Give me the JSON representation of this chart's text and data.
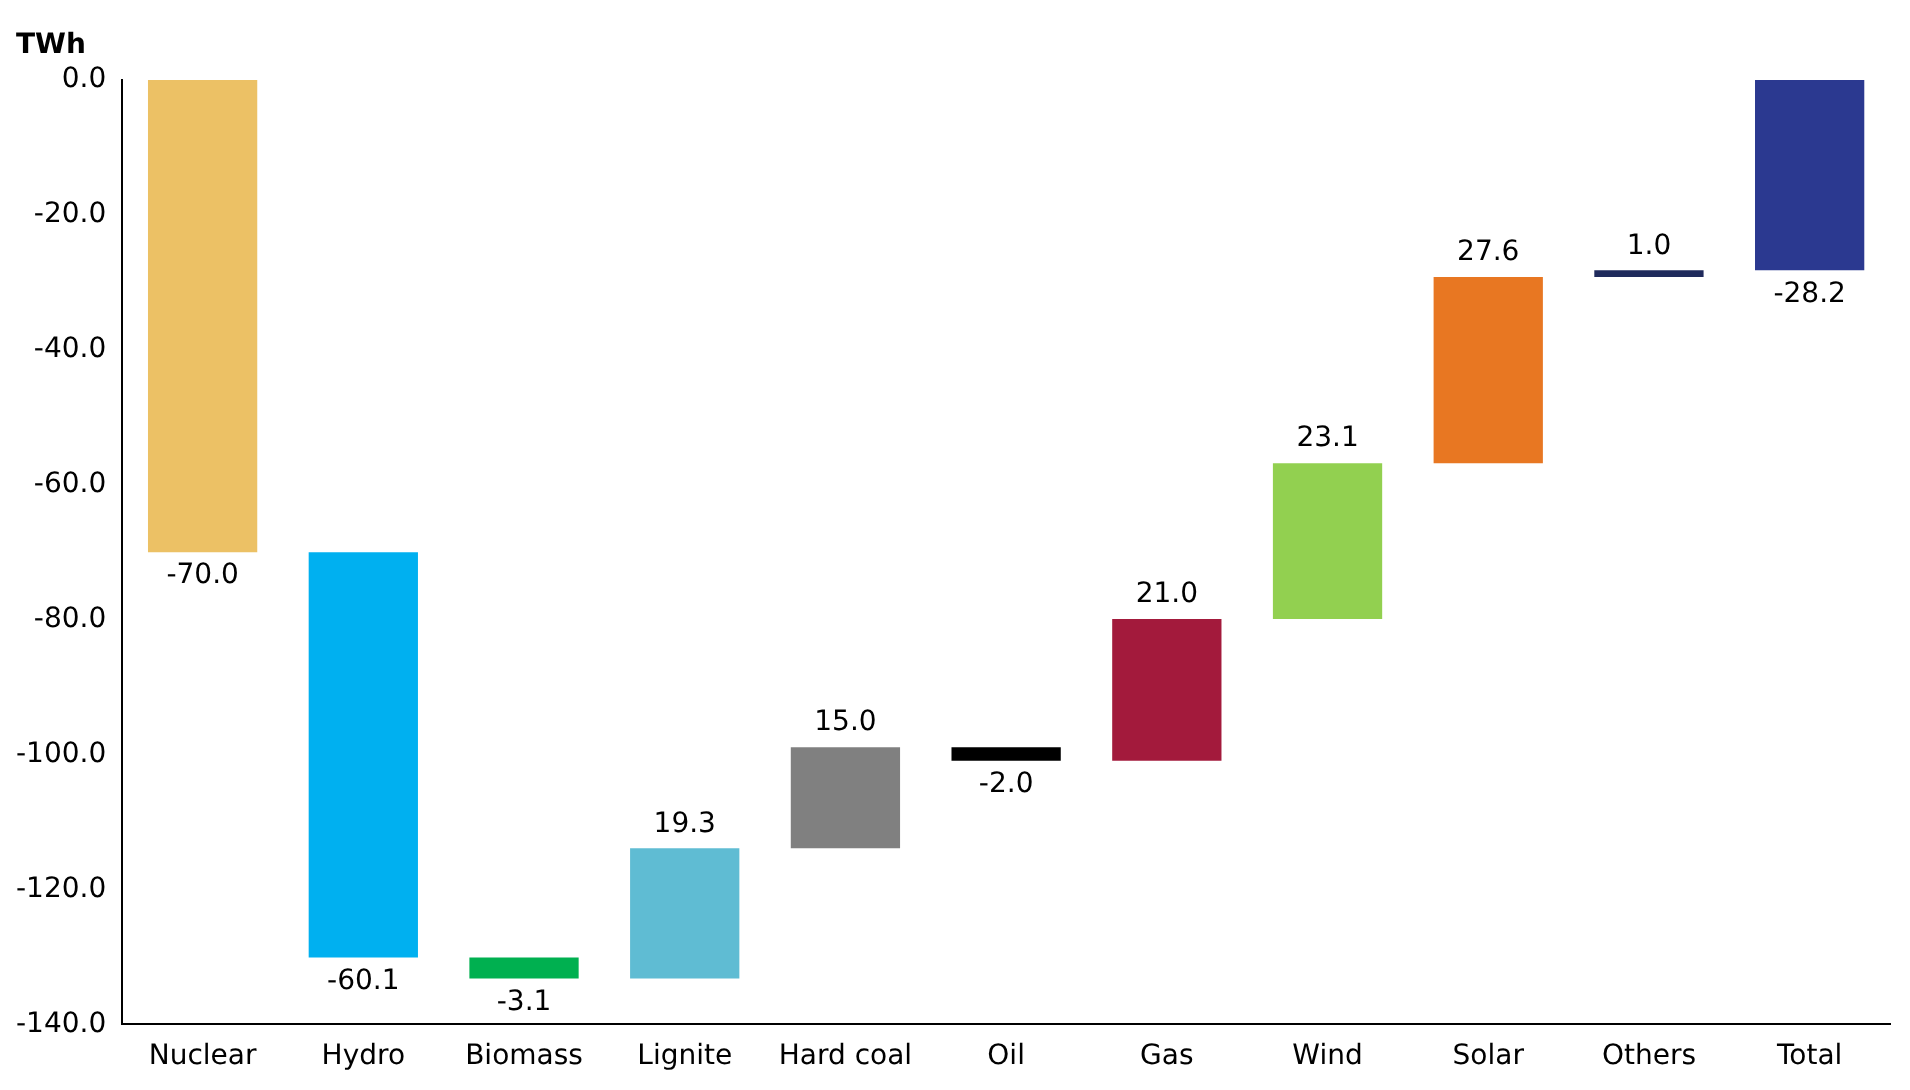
{
  "chart_data": {
    "type": "bar",
    "ylabel": "TWh",
    "categories": [
      "Nuclear",
      "Hydro",
      "Biomass",
      "Lignite",
      "Hard coal",
      "Oil",
      "Gas",
      "Wind",
      "Solar",
      "Others",
      "Total"
    ],
    "values": [
      -70.0,
      -60.1,
      -3.1,
      19.3,
      15.0,
      -2.0,
      21.0,
      23.1,
      27.6,
      1.0,
      -28.2
    ],
    "base": [
      0,
      -70.0,
      -130.1,
      -133.2,
      -113.9,
      -98.9,
      -100.9,
      -79.9,
      -56.8,
      -29.2,
      0
    ],
    "value_labels": [
      "-70.0",
      "-60.1",
      "-3.1",
      "19.3",
      "15.0",
      "-2.0",
      "21.0",
      "23.1",
      "27.6",
      "1.0",
      "-28.2"
    ],
    "colors": [
      "#ecc165",
      "#00b0f0",
      "#00b050",
      "#5fbcd3",
      "#808080",
      "#000000",
      "#a31a3c",
      "#92d050",
      "#e87722",
      "#1f2a5c",
      "#2b3990"
    ],
    "ylim": [
      -140,
      0
    ],
    "yticks": [
      {
        "value": -140,
        "label": "-140.0"
      },
      {
        "value": -120,
        "label": "-120.0"
      },
      {
        "value": -100,
        "label": "-100.0"
      },
      {
        "value": -80,
        "label": "-80.0"
      },
      {
        "value": -60,
        "label": "-60.0"
      },
      {
        "value": -40,
        "label": "-40.0"
      },
      {
        "value": -20,
        "label": "-20.0"
      },
      {
        "value": 0,
        "label": "0.0"
      }
    ],
    "grid": false,
    "legend": false
  }
}
